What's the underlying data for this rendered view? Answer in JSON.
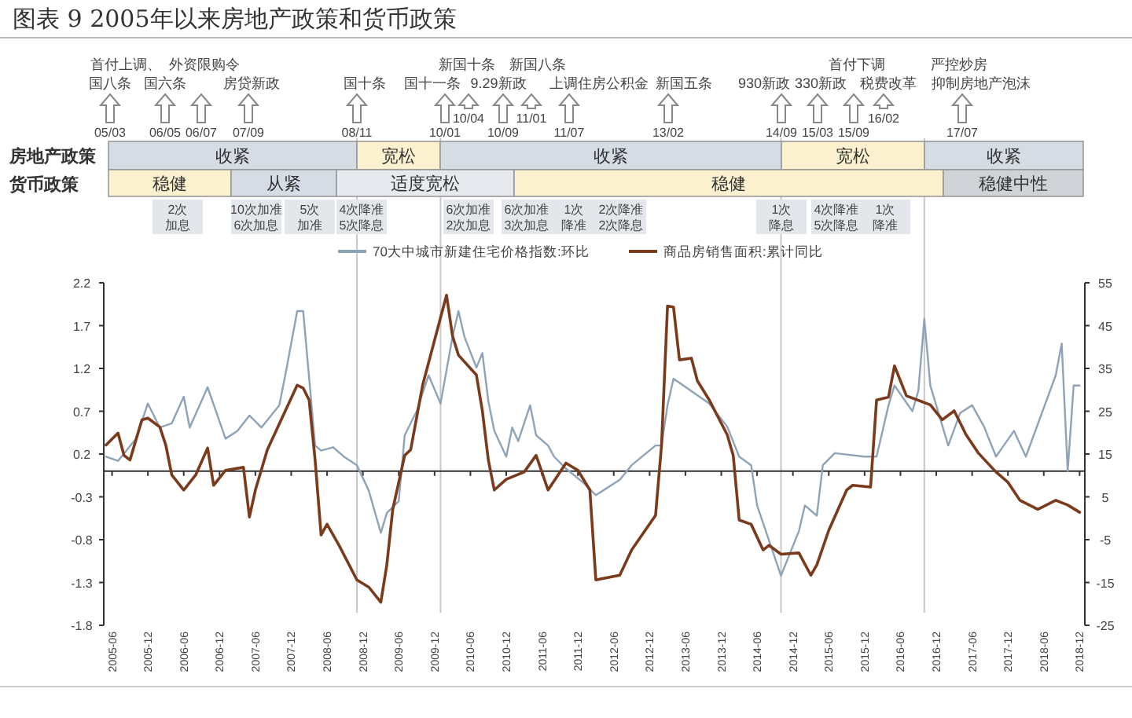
{
  "chart_data": {
    "type": "line",
    "title": "图表 9 2005年以来房地产政策和货币政策",
    "legend": "top",
    "xlim": [
      "2005-04-20",
      "2018-12-28"
    ],
    "xticks": [
      "2005-06",
      "2005-12",
      "2006-06",
      "2006-12",
      "2007-06",
      "2007-12",
      "2008-06",
      "2008-12",
      "2009-06",
      "2009-12",
      "2010-06",
      "2010-12",
      "2011-06",
      "2011-12",
      "2012-06",
      "2012-12",
      "2013-06",
      "2013-12",
      "2014-06",
      "2014-12",
      "2015-06",
      "2015-12",
      "2016-06",
      "2016-12",
      "2017-06",
      "2017-12",
      "2018-06",
      "2018-12"
    ],
    "ylim": [
      -1.8,
      2.2
    ],
    "yticks": [
      -1.8,
      -1.3,
      -0.8,
      -0.3,
      0.2,
      0.7,
      1.2,
      1.7,
      2.2
    ],
    "y2lim": [
      -25,
      55
    ],
    "y2ticks": [
      -25,
      -15,
      -5,
      5,
      15,
      25,
      35,
      45,
      55
    ],
    "series": [
      {
        "name": "70大中城市新建住宅价格指数:环比",
        "color": "#8fa3b8",
        "x": [
          "2005-05",
          "2005-07",
          "2005-10",
          "2005-12",
          "2006-02",
          "2006-04",
          "2006-06",
          "2006-07",
          "2006-10",
          "2007-01",
          "2007-03",
          "2007-05",
          "2007-07",
          "2007-10",
          "2007-11",
          "2008-01",
          "2008-02",
          "2008-04",
          "2008-05",
          "2008-07",
          "2008-09",
          "2008-11",
          "2009-01",
          "2009-03",
          "2009-04",
          "2009-06",
          "2009-07",
          "2009-09",
          "2009-11",
          "2010-01",
          "2010-03",
          "2010-04",
          "2010-05",
          "2010-07",
          "2010-08",
          "2010-09",
          "2010-10",
          "2010-12",
          "2011-01",
          "2011-02",
          "2011-04",
          "2011-05",
          "2011-07",
          "2011-08",
          "2011-10",
          "2012-01",
          "2012-03",
          "2012-07",
          "2012-09",
          "2013-01",
          "2013-02",
          "2013-03",
          "2013-04",
          "2013-10",
          "2014-01",
          "2014-03",
          "2014-05",
          "2014-06",
          "2014-10",
          "2015-01",
          "2015-02",
          "2015-04",
          "2015-05",
          "2015-07",
          "2015-12",
          "2016-02",
          "2016-04",
          "2016-05",
          "2016-08",
          "2016-09",
          "2016-10",
          "2016-11",
          "2017-02",
          "2017-04",
          "2017-06",
          "2017-08",
          "2017-10",
          "2018-01",
          "2018-03",
          "2018-08",
          "2018-09",
          "2018-10",
          "2018-11",
          "2018-12"
        ],
        "values": [
          0.17,
          0.12,
          0.38,
          0.79,
          0.51,
          0.56,
          0.87,
          0.51,
          0.98,
          0.38,
          0.47,
          0.65,
          0.51,
          0.77,
          1.12,
          1.87,
          1.87,
          0.3,
          0.24,
          0.28,
          0.16,
          0.07,
          -0.23,
          -0.72,
          -0.49,
          -0.35,
          0.42,
          0.7,
          1.12,
          0.79,
          1.57,
          1.87,
          1.57,
          1.21,
          1.38,
          0.82,
          0.47,
          0.17,
          0.51,
          0.35,
          0.77,
          0.42,
          0.3,
          0.17,
          0.03,
          -0.14,
          -0.28,
          -0.1,
          0.07,
          0.3,
          0.3,
          0.77,
          1.08,
          0.79,
          0.52,
          0.17,
          0.07,
          -0.4,
          -1.22,
          -0.7,
          -0.4,
          -0.52,
          0.07,
          0.21,
          0.17,
          0.17,
          0.77,
          1.0,
          0.7,
          0.94,
          1.78,
          1.0,
          0.3,
          0.68,
          0.77,
          0.52,
          0.17,
          0.47,
          0.17,
          1.12,
          1.49,
          0.0,
          1.0,
          1.0
        ]
      },
      {
        "name": "商品房销售面积:累计同比",
        "color": "#7a3b1c",
        "axis": "y2",
        "x": [
          "2005-05",
          "2005-07",
          "2005-08",
          "2005-09",
          "2005-11",
          "2005-12",
          "2006-02",
          "2006-03",
          "2006-04",
          "2006-06",
          "2006-08",
          "2006-10",
          "2006-11",
          "2007-01",
          "2007-04",
          "2007-05",
          "2007-06",
          "2007-08",
          "2008-01",
          "2008-02",
          "2008-03",
          "2008-04",
          "2008-05",
          "2008-06",
          "2008-08",
          "2008-11",
          "2009-01",
          "2009-03",
          "2009-04",
          "2009-05",
          "2009-07",
          "2009-08",
          "2009-10",
          "2009-12",
          "2010-02",
          "2010-03",
          "2010-04",
          "2010-07",
          "2010-08",
          "2010-09",
          "2010-10",
          "2010-12",
          "2011-03",
          "2011-05",
          "2011-07",
          "2011-10",
          "2011-12",
          "2012-02",
          "2012-03",
          "2012-07",
          "2012-09",
          "2013-01",
          "2013-02",
          "2013-03",
          "2013-04",
          "2013-05",
          "2013-07",
          "2013-08",
          "2013-10",
          "2014-01",
          "2014-02",
          "2014-03",
          "2014-05",
          "2014-07",
          "2014-08",
          "2014-10",
          "2015-01",
          "2015-03",
          "2015-04",
          "2015-06",
          "2015-09",
          "2015-10",
          "2016-01",
          "2016-02",
          "2016-04",
          "2016-05",
          "2016-07",
          "2016-11",
          "2017-01",
          "2017-03",
          "2017-05",
          "2017-07",
          "2017-10",
          "2017-12",
          "2018-02",
          "2018-05",
          "2018-08",
          "2018-10",
          "2018-12"
        ],
        "values": [
          17.1,
          19.9,
          14.7,
          13.6,
          23.0,
          23.4,
          21.3,
          17.1,
          10.1,
          6.6,
          10.1,
          16.4,
          7.7,
          11.2,
          11.9,
          0.3,
          6.6,
          16.0,
          31.1,
          30.4,
          27.6,
          13.6,
          -3.9,
          -1.4,
          -6.3,
          -14.4,
          -16.1,
          -19.6,
          -10.9,
          2.1,
          14.7,
          16.0,
          31.1,
          41.6,
          52.1,
          42.6,
          38.1,
          33.5,
          25.1,
          13.6,
          6.6,
          9.1,
          10.8,
          14.7,
          6.6,
          12.9,
          11.2,
          6.6,
          -14.4,
          -13.3,
          -7.4,
          0.7,
          17.1,
          49.6,
          49.3,
          37.0,
          37.4,
          32.1,
          27.6,
          19.5,
          14.7,
          -0.4,
          -1.4,
          -7.4,
          -6.3,
          -8.4,
          -8.1,
          -13.3,
          -10.9,
          -2.8,
          6.6,
          7.7,
          7.3,
          27.6,
          28.3,
          35.6,
          28.6,
          26.5,
          23.0,
          25.1,
          19.5,
          15.3,
          10.8,
          8.4,
          4.2,
          2.1,
          4.2,
          3.1,
          1.4
        ]
      }
    ],
    "ref_lines": [
      {
        "axis": "x",
        "value": "2008-11",
        "color": "#c8c8c8"
      },
      {
        "axis": "x",
        "value": "2010-01",
        "color": "#c8c8c8"
      },
      {
        "axis": "x",
        "value": "2014-10",
        "color": "#c8c8c8"
      },
      {
        "axis": "x",
        "value": "2016-10",
        "color": "#c8c8c8"
      }
    ],
    "annotations": [
      "房地产政策",
      "货币政策",
      "收紧",
      "宽松",
      "收紧",
      "宽松",
      "收紧",
      "稳健",
      "从紧",
      "适度宽松",
      "稳健",
      "稳健中性",
      "首付上调、",
      "外资限购令",
      "新国十条",
      "新国八条",
      "首付下调",
      "严控炒房",
      "国八条",
      "国六条",
      "房贷新政",
      "国十条",
      "国十一条",
      "9.29新政",
      "上调住房公积金",
      "新国五条",
      "930新政",
      "330新政",
      "税费改革",
      "抑制房地产泡沫",
      "05/03",
      "06/05",
      "06/07",
      "07/09",
      "08/11",
      "10/01",
      "10/04",
      "10/09",
      "11/01",
      "11/07",
      "13/02",
      "14/09",
      "15/03",
      "15/09",
      "16/02",
      "17/07",
      "2次加息",
      "10次加准\n6次加息",
      "5次加准",
      "4次降准\n5次降息",
      "6次加准\n2次加息",
      "6次加准\n3次加息",
      "1次降准",
      "2次降准\n2次降息",
      "1次降息",
      "4次降准\n5次降息",
      "1次降准"
    ]
  }
}
